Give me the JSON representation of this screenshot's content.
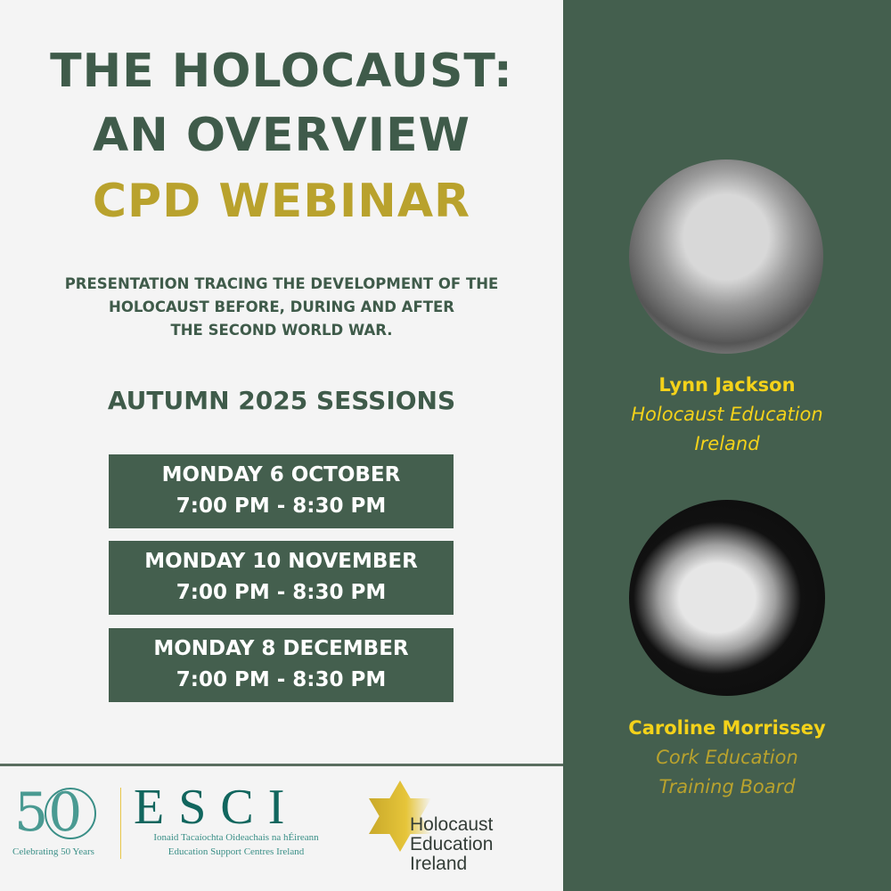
{
  "title": {
    "line1": "THE HOLOCAUST:",
    "line2": "AN OVERVIEW",
    "line3": "CPD WEBINAR"
  },
  "description": [
    "PRESENTATION TRACING THE DEVELOPMENT OF THE",
    "HOLOCAUST BEFORE, DURING AND AFTER",
    "THE SECOND WORLD WAR."
  ],
  "sessions_heading": "AUTUMN 2025 SESSIONS",
  "sessions": [
    {
      "date": "MONDAY 6 OCTOBER",
      "time": "7:00 PM - 8:30 PM"
    },
    {
      "date": "MONDAY 10 NOVEMBER",
      "time": "7:00 PM - 8:30 PM"
    },
    {
      "date": "MONDAY 8 DECEMBER",
      "time": "7:00 PM - 8:30 PM"
    }
  ],
  "speakers": [
    {
      "name": "Lynn Jackson",
      "org_line1": "Holocaust Education",
      "org_line2": "Ireland"
    },
    {
      "name": "Caroline Morrissey",
      "org_line1": "Cork Education",
      "org_line2": "Training Board"
    }
  ],
  "logos": {
    "esci_50": "50",
    "esci_celebrating": "Celebrating 50 Years",
    "esci_name": "ESCI",
    "esci_irish": "Ionaid Tacaíochta Oideachais na hÉireann",
    "esci_english": "Education Support Centres Ireland",
    "hei": [
      "Holocaust",
      "Education",
      "Ireland"
    ]
  },
  "colors": {
    "green": "#445f4e",
    "title_green": "#3f5b4a",
    "gold": "#b9a22d",
    "yellow": "#f4d21a"
  }
}
